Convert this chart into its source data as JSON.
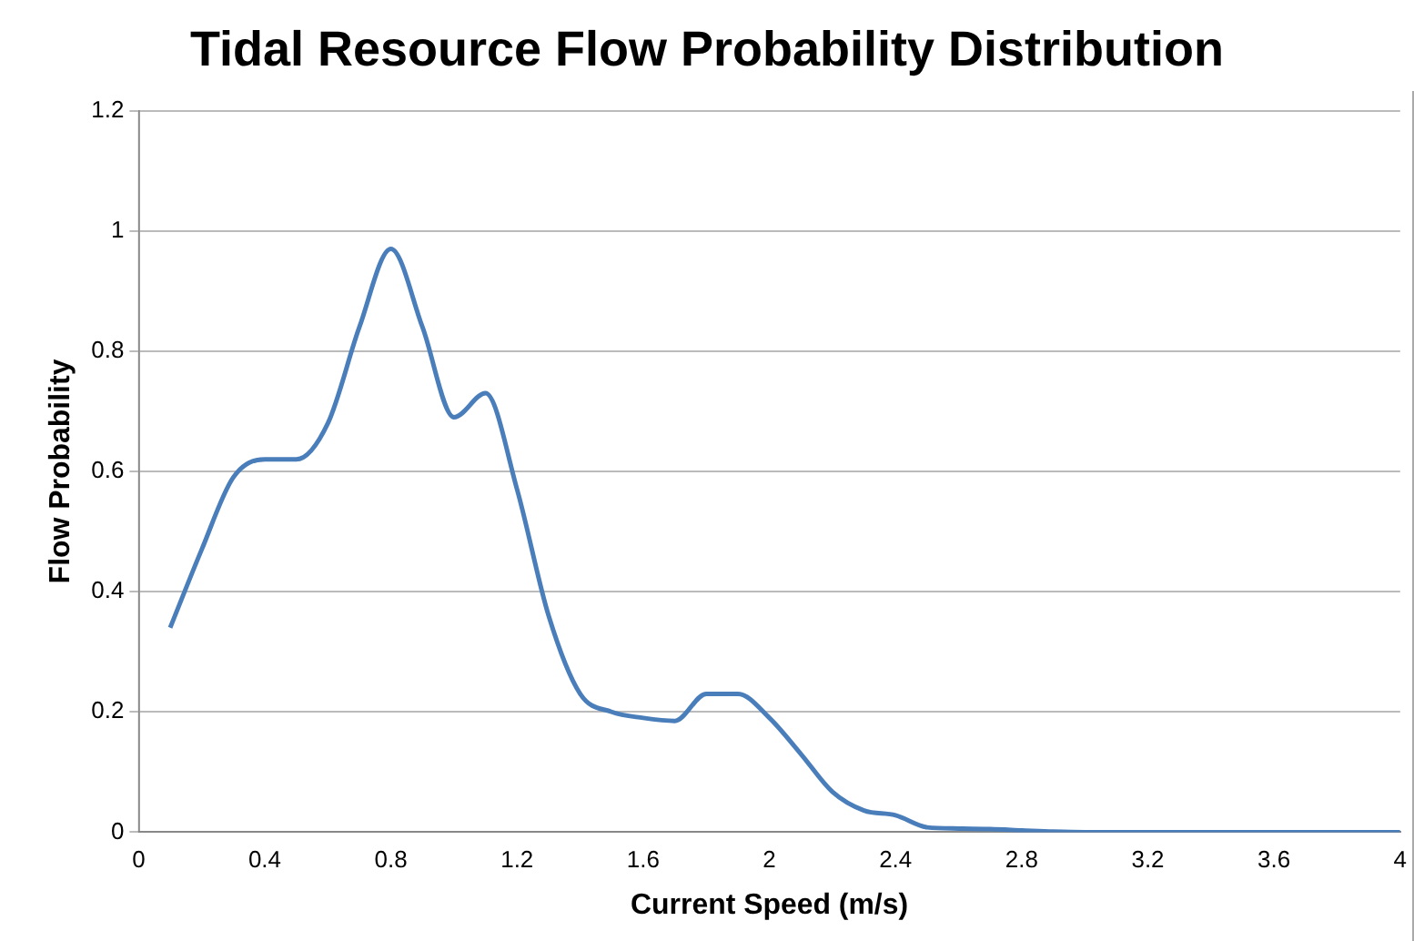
{
  "chart_data": {
    "type": "line",
    "title": "Tidal Resource Flow Probability Distribution",
    "xlabel": "Current Speed (m/s)",
    "ylabel": "Flow Probability",
    "x": [
      0.1,
      0.2,
      0.3,
      0.4,
      0.5,
      0.6,
      0.7,
      0.8,
      0.9,
      1.0,
      1.1,
      1.2,
      1.3,
      1.4,
      1.5,
      1.6,
      1.7,
      1.8,
      1.9,
      2.0,
      2.1,
      2.2,
      2.3,
      2.4,
      2.5,
      2.6,
      2.7,
      2.8,
      2.9,
      3.0,
      3.2,
      3.4,
      3.6,
      3.8,
      4.0
    ],
    "series": [
      {
        "color": "#4a7ebb",
        "values": [
          0.34,
          0.47,
          0.59,
          0.62,
          0.62,
          0.68,
          0.84,
          0.97,
          0.84,
          0.69,
          0.73,
          0.57,
          0.36,
          0.23,
          0.2,
          0.19,
          0.185,
          0.23,
          0.23,
          0.19,
          0.13,
          0.067,
          0.036,
          0.028,
          0.008,
          0.006,
          0.005,
          0.003,
          0.001,
          0,
          0,
          0,
          0,
          0,
          0
        ]
      }
    ],
    "xlim": [
      0,
      4
    ],
    "xticks": [
      0,
      0.4,
      0.8,
      1.2,
      1.6,
      2,
      2.4,
      2.8,
      3.2,
      3.6,
      4
    ],
    "ylim": [
      0,
      1.2
    ],
    "yticks": [
      0,
      0.2,
      0.4,
      0.6,
      0.8,
      1,
      1.2
    ],
    "grid": "y",
    "legend": false,
    "marker": "none",
    "line_style": "solid"
  }
}
